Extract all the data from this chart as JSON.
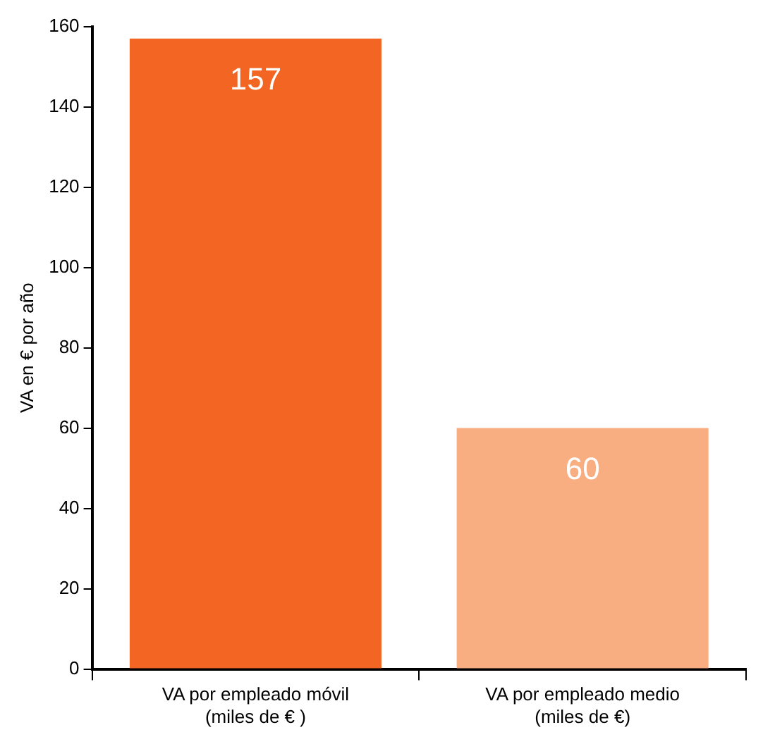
{
  "chart_data": {
    "type": "bar",
    "ylabel": "VA en € por año",
    "categories": [
      "VA por empleado móvil\n(miles de € )",
      "VA por empleado medio\n(miles de €)"
    ],
    "values": [
      157,
      60
    ],
    "colors": [
      "#f26522",
      "#f9ae82"
    ],
    "ylim": [
      0,
      160
    ],
    "yticks": [
      0,
      20,
      40,
      60,
      80,
      100,
      120,
      140,
      160
    ],
    "grid": false,
    "data_labels": true
  }
}
